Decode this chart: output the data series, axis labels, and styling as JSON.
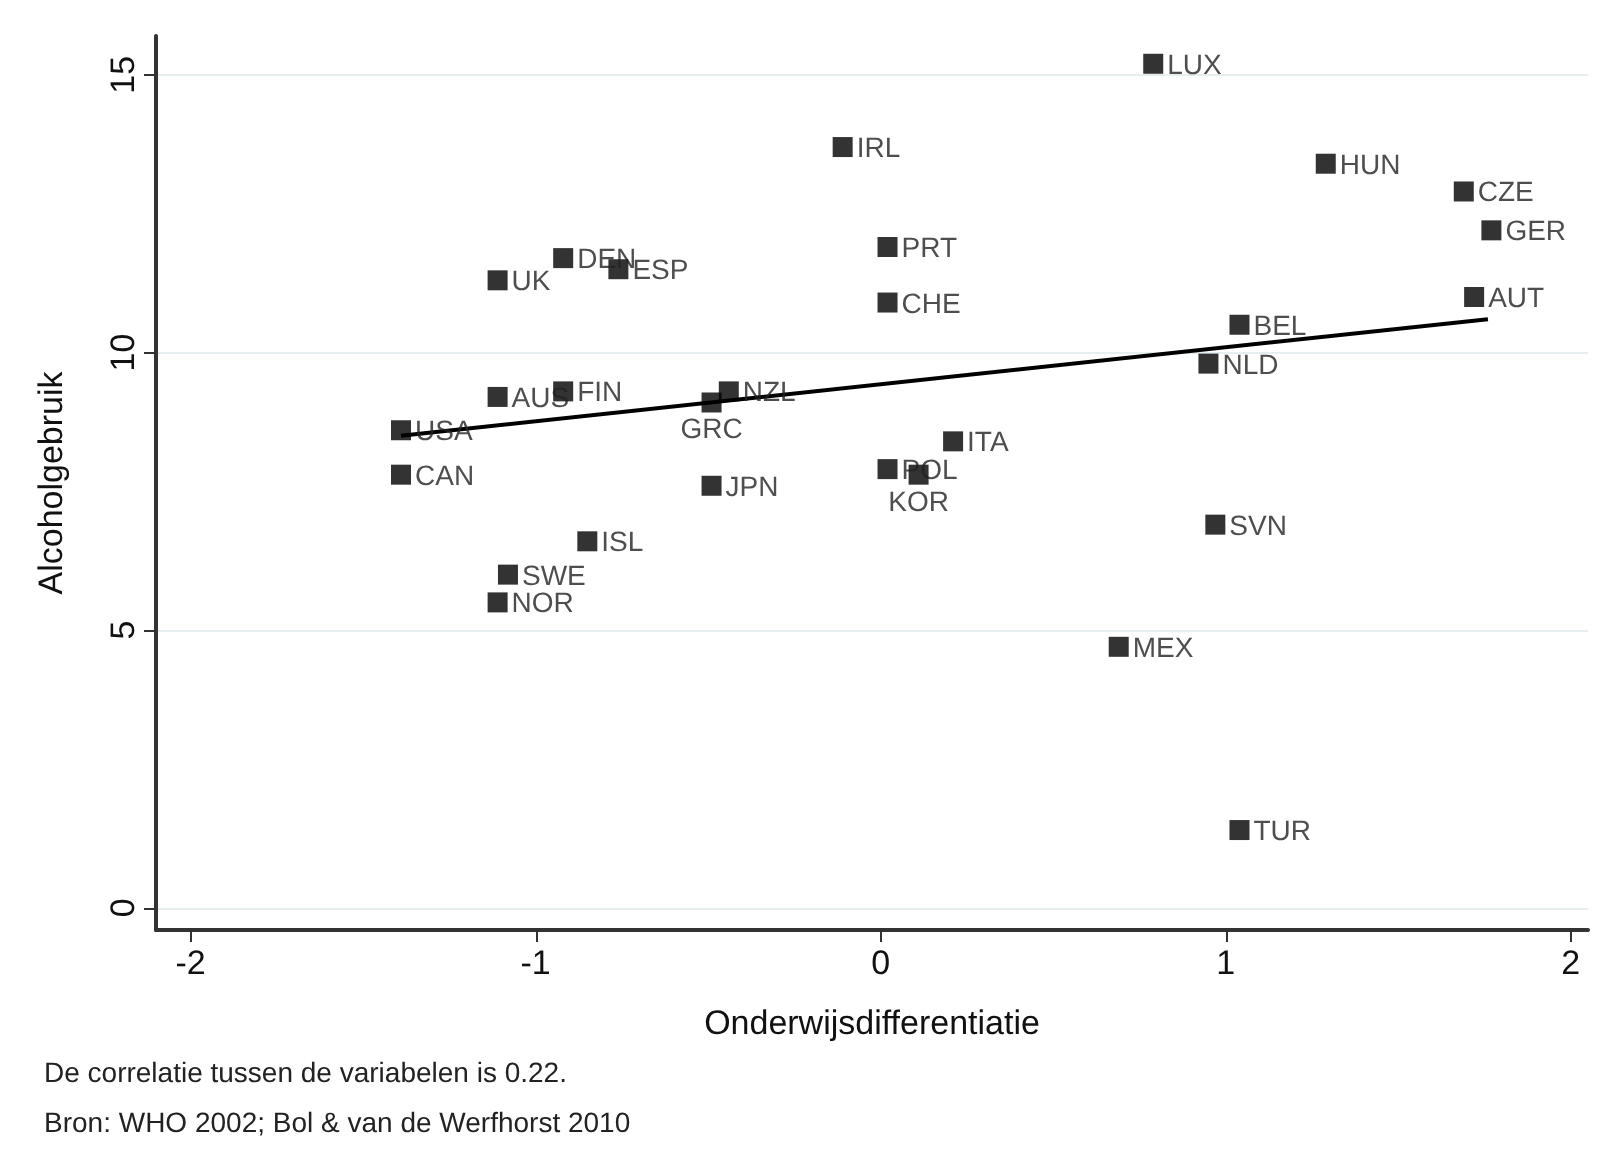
{
  "chart_data": {
    "type": "scatter",
    "xlabel": "Onderwijsdifferentiatie",
    "ylabel": "Alcoholgebruik",
    "annotations": [
      "De correlatie tussen de variabelen is 0.22.",
      "Bron: WHO 2002; Bol & van de Werfhorst 2010"
    ],
    "xlim": [
      -2.1,
      2.05
    ],
    "xticks": [
      -2,
      -1,
      0,
      1,
      2
    ],
    "ylim": [
      -0.4,
      15.7
    ],
    "yticks": [
      0,
      5,
      10,
      15
    ],
    "grid": "y",
    "series": [
      {
        "color": "#000000",
        "marker": "square",
        "x": [
          0.79,
          -0.11,
          1.29,
          1.69,
          1.77,
          1.72,
          0.02,
          0.02,
          1.04,
          0.95,
          0.21,
          0.02,
          0.11,
          0.97,
          0.69,
          1.04,
          -1.11,
          -0.92,
          -0.76,
          -1.11,
          -0.92,
          -0.44,
          -0.49,
          -1.39,
          -1.39,
          -0.49,
          -0.85,
          -1.08,
          -1.11
        ],
        "values": [
          15.2,
          13.7,
          13.4,
          12.9,
          12.2,
          11.0,
          11.9,
          10.9,
          10.5,
          9.8,
          8.4,
          7.9,
          7.8,
          6.9,
          4.7,
          1.4,
          11.3,
          11.7,
          11.5,
          9.2,
          9.3,
          9.3,
          9.1,
          8.6,
          7.8,
          7.6,
          6.6,
          6.0,
          5.5
        ],
        "value_labels": [
          "LUX",
          "IRL",
          "HUN",
          "CZE",
          "GER",
          "AUT",
          "PRT",
          "CHE",
          "BEL",
          "NLD",
          "ITA",
          "POL",
          "KOR",
          "SVN",
          "MEX",
          "TUR",
          "UK",
          "DEN",
          "ESP",
          "AUS",
          "FIN",
          "NZL",
          "GRC",
          "USA",
          "CAN",
          "JPN",
          "ISL",
          "SWE",
          "NOR"
        ]
      },
      {
        "type": "line",
        "color": "#000000",
        "marker": "none",
        "line_style": "solid",
        "x": [
          -1.39,
          1.76
        ],
        "values": [
          8.5,
          10.6
        ]
      }
    ]
  }
}
